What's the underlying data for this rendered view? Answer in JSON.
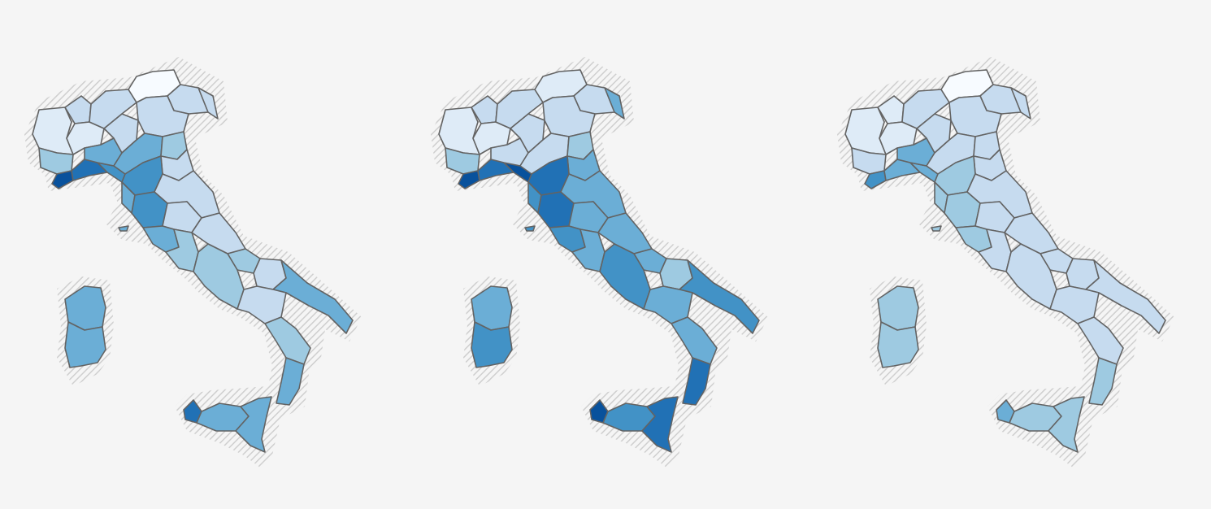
{
  "page": {
    "background": "#f5f5f5"
  },
  "style": {
    "province_stroke": "#636363",
    "hatch_color": "#cfcfcf",
    "palette": [
      "#f7fbff",
      "#deebf7",
      "#c6dbef",
      "#9ecae1",
      "#6baed6",
      "#4292c6",
      "#2171b5",
      "#08519c"
    ]
  },
  "maps": [
    {
      "name": "map-left",
      "levels": {
        "nw_piemonte_w": 1,
        "nw_aosta": 2,
        "nw_piemonte_c": 1,
        "nw_piemonte_s": 3,
        "nw_lig_w": 7,
        "nw_lig_c": 6,
        "nw_lig_e": 5,
        "nw_lomb_w": 4,
        "nw_lomb_c": 2,
        "nw_lomb_n": 2,
        "ne_tren": 0,
        "ne_vene_n": 2,
        "ne_vene_s": 2,
        "ne_friuli": 2,
        "ne_emil_w": 4,
        "ne_emil_e": 3,
        "ne_romagna": 2,
        "c_tosc_n": 5,
        "c_tosc_s": 5,
        "c_tosc_w": 4,
        "c_march": 2,
        "c_umbria": 2,
        "c_lazio_n": 4,
        "c_lazio_s": 3,
        "c_abruzzo": 2,
        "c_molise": 3,
        "s_camp": 3,
        "s_puglia_n": 2,
        "s_puglia_s": 4,
        "s_basil": 2,
        "s_calab_n": 3,
        "s_calab_s": 4,
        "i_sard_n": 4,
        "i_sard_s": 4,
        "i_sic_w": 6,
        "i_sic_c": 4,
        "i_sic_e": 4,
        "i_elba": 4
      }
    },
    {
      "name": "map-center",
      "levels": {
        "nw_piemonte_w": 1,
        "nw_aosta": 2,
        "nw_piemonte_c": 1,
        "nw_piemonte_s": 3,
        "nw_lig_w": 7,
        "nw_lig_c": 6,
        "nw_lig_e": 7,
        "nw_lomb_w": 2,
        "nw_lomb_c": 2,
        "nw_lomb_n": 2,
        "ne_tren": 1,
        "ne_vene_n": 2,
        "ne_vene_s": 2,
        "ne_friuli": 4,
        "ne_emil_w": 2,
        "ne_emil_e": 3,
        "ne_romagna": 4,
        "c_tosc_n": 6,
        "c_tosc_s": 6,
        "c_tosc_w": 5,
        "c_march": 4,
        "c_umbria": 4,
        "c_lazio_n": 5,
        "c_lazio_s": 4,
        "c_abruzzo": 4,
        "c_molise": 4,
        "s_camp": 5,
        "s_puglia_n": 3,
        "s_puglia_s": 5,
        "s_basil": 4,
        "s_calab_n": 4,
        "s_calab_s": 6,
        "i_sard_n": 4,
        "i_sard_s": 5,
        "i_sic_w": 7,
        "i_sic_c": 5,
        "i_sic_e": 6,
        "i_elba": 5
      }
    },
    {
      "name": "map-right",
      "levels": {
        "nw_piemonte_w": 1,
        "nw_aosta": 1,
        "nw_piemonte_c": 1,
        "nw_piemonte_s": 2,
        "nw_lig_w": 5,
        "nw_lig_c": 4,
        "nw_lig_e": 4,
        "nw_lomb_w": 4,
        "nw_lomb_c": 2,
        "nw_lomb_n": 2,
        "ne_tren": 0,
        "ne_vene_n": 2,
        "ne_vene_s": 2,
        "ne_friuli": 2,
        "ne_emil_w": 2,
        "ne_emil_e": 2,
        "ne_romagna": 2,
        "c_tosc_n": 3,
        "c_tosc_s": 3,
        "c_tosc_w": 3,
        "c_march": 2,
        "c_umbria": 2,
        "c_lazio_n": 3,
        "c_lazio_s": 2,
        "c_abruzzo": 2,
        "c_molise": 2,
        "s_camp": 2,
        "s_puglia_n": 2,
        "s_puglia_s": 2,
        "s_basil": 2,
        "s_calab_n": 2,
        "s_calab_s": 3,
        "i_sard_n": 3,
        "i_sard_s": 3,
        "i_sic_w": 4,
        "i_sic_c": 3,
        "i_sic_e": 3,
        "i_elba": 3
      }
    }
  ]
}
